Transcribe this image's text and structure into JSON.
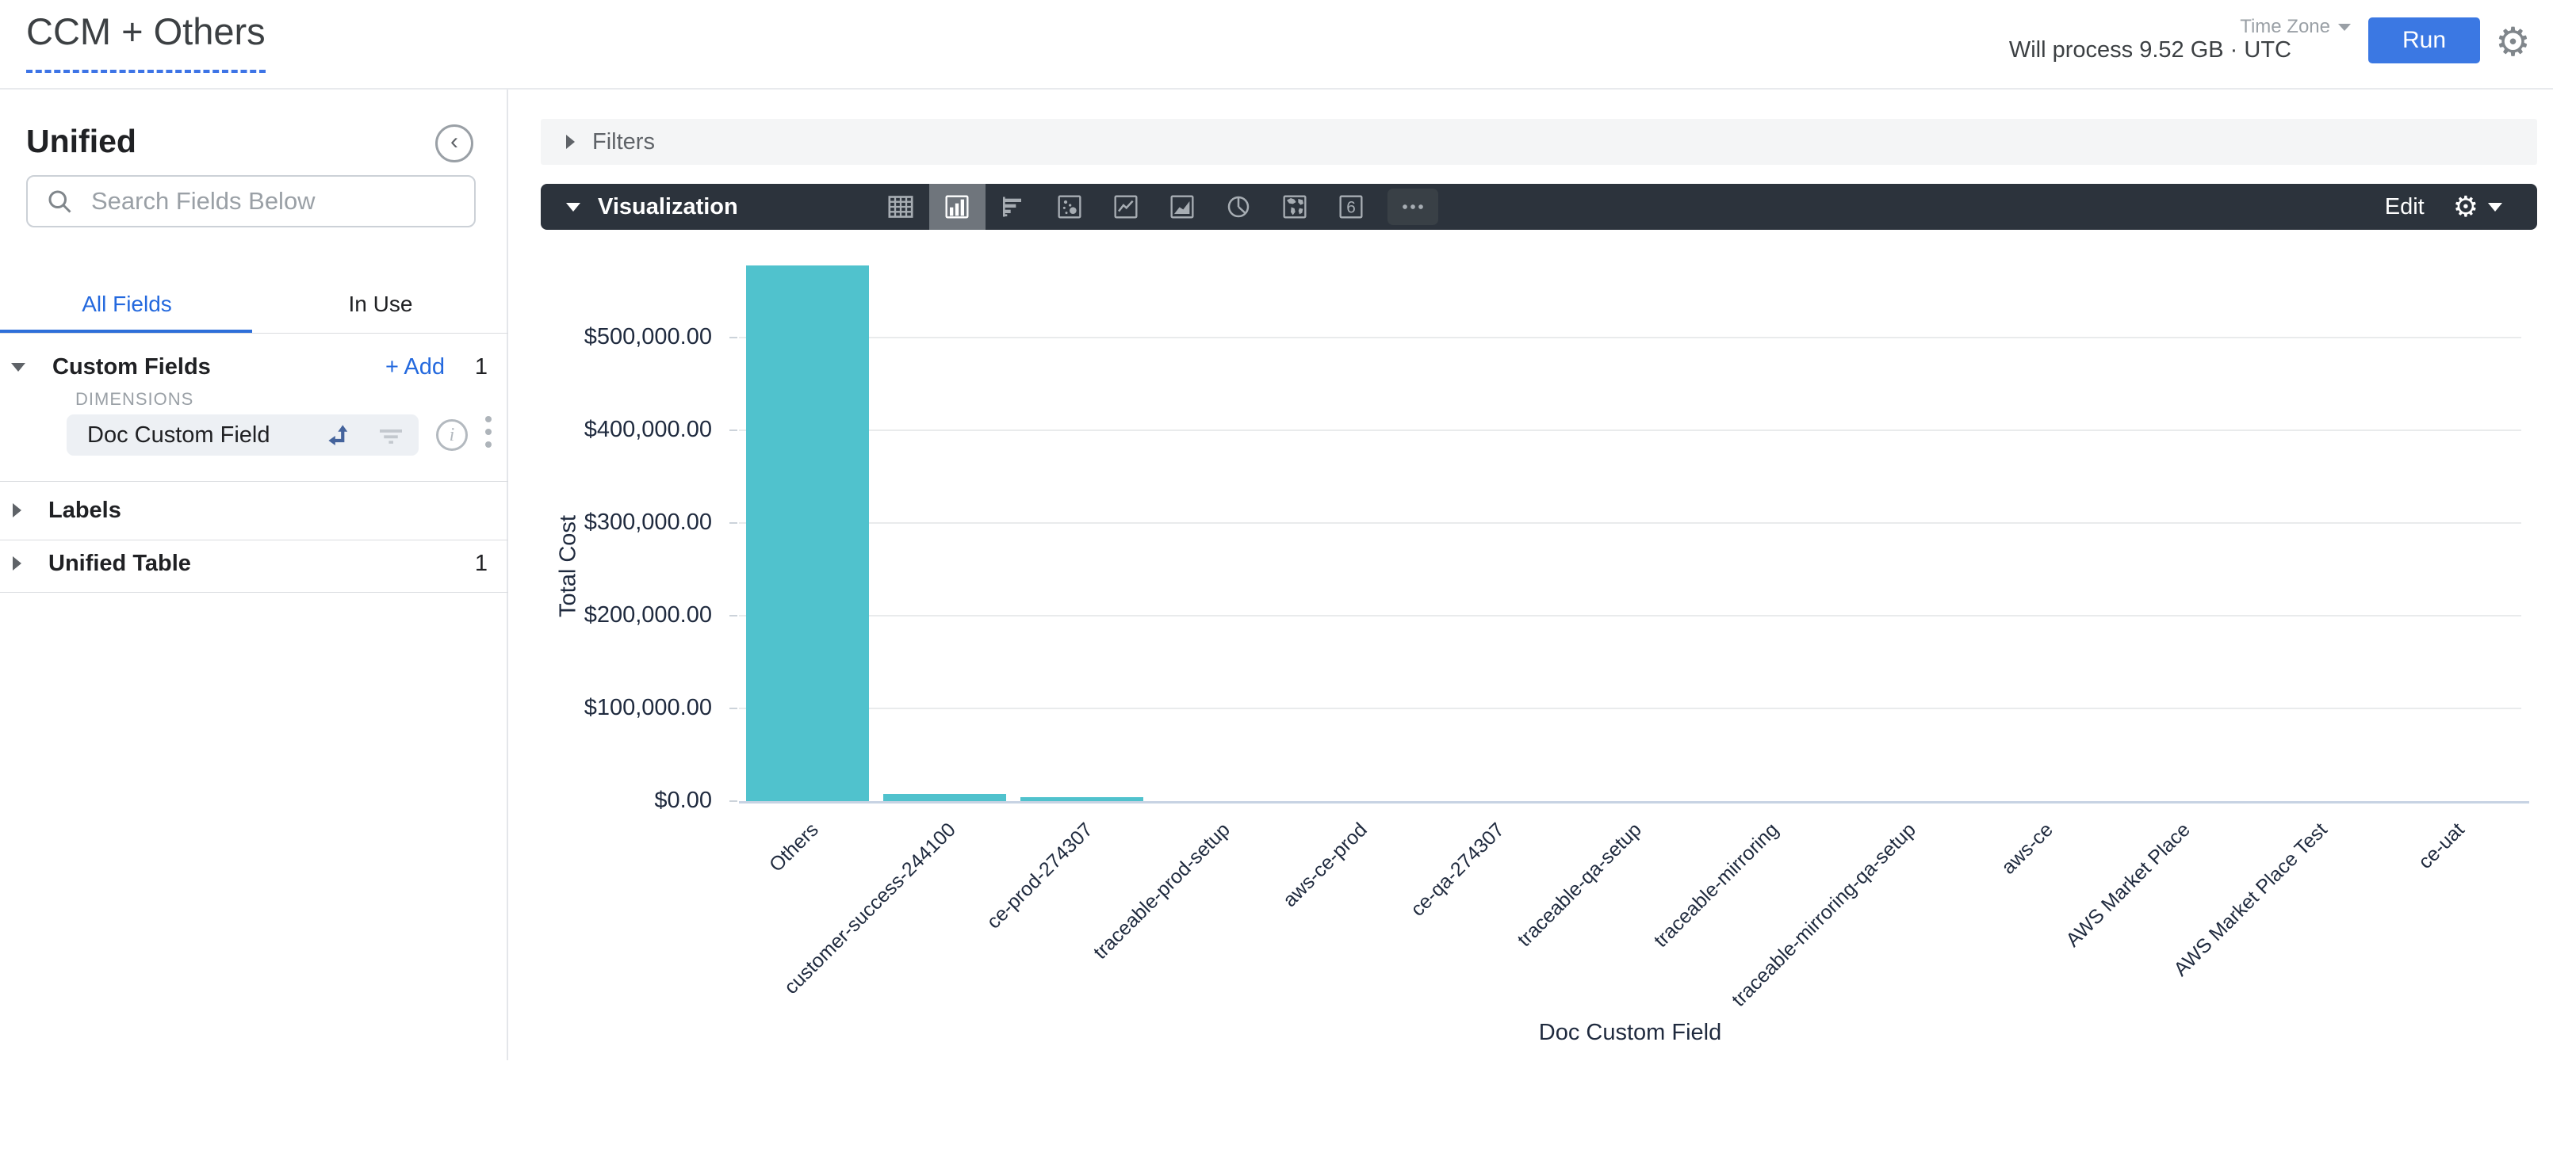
{
  "header": {
    "title": "CCM + Others",
    "process_text": "Will process 9.52 GB · UTC",
    "timezone_label": "Time Zone",
    "run_label": "Run"
  },
  "sidebar": {
    "title": "Unified",
    "search_placeholder": "Search Fields Below",
    "tabs": [
      {
        "label": "All Fields",
        "active": true
      },
      {
        "label": "In Use",
        "active": false
      }
    ],
    "custom_fields": {
      "label": "Custom Fields",
      "add_label": "+ Add",
      "count": "1",
      "group_label": "DIMENSIONS",
      "fields": [
        {
          "label": "Doc Custom Field"
        }
      ]
    },
    "labels_section": {
      "label": "Labels"
    },
    "unified_table_section": {
      "label": "Unified Table",
      "count": "1"
    }
  },
  "filters": {
    "label": "Filters"
  },
  "visualization": {
    "label": "Visualization",
    "edit_label": "Edit",
    "icons": [
      {
        "name": "table"
      },
      {
        "name": "column",
        "selected": true
      },
      {
        "name": "bar"
      },
      {
        "name": "scatter"
      },
      {
        "name": "line"
      },
      {
        "name": "area"
      },
      {
        "name": "pie"
      },
      {
        "name": "map"
      },
      {
        "name": "single-value"
      },
      {
        "name": "more"
      }
    ]
  },
  "chart_data": {
    "type": "bar",
    "title": "",
    "xlabel": "Doc Custom Field",
    "ylabel": "Total Cost",
    "categories": [
      "Others",
      "customer-success-244100",
      "ce-prod-274307",
      "traceable-prod-setup",
      "aws-ce-prod",
      "ce-qa-274307",
      "traceable-qa-setup",
      "traceable-mirroring",
      "traceable-mirroring-qa-setup",
      "aws-ce",
      "AWS Market Place",
      "AWS Market Place Test",
      "ce-uat"
    ],
    "values": [
      578000,
      7500,
      4200,
      0,
      0,
      0,
      0,
      0,
      0,
      0,
      0,
      0,
      0
    ],
    "ylim": [
      0,
      600000
    ],
    "yticks": [
      {
        "value": 0,
        "label": "$0.00"
      },
      {
        "value": 100000,
        "label": "$100,000.00"
      },
      {
        "value": 200000,
        "label": "$200,000.00"
      },
      {
        "value": 300000,
        "label": "$300,000.00"
      },
      {
        "value": 400000,
        "label": "$400,000.00"
      },
      {
        "value": 500000,
        "label": "$500,000.00"
      }
    ],
    "bar_color": "#50c2cd",
    "grid": "horizontal-y",
    "legend": "none"
  }
}
